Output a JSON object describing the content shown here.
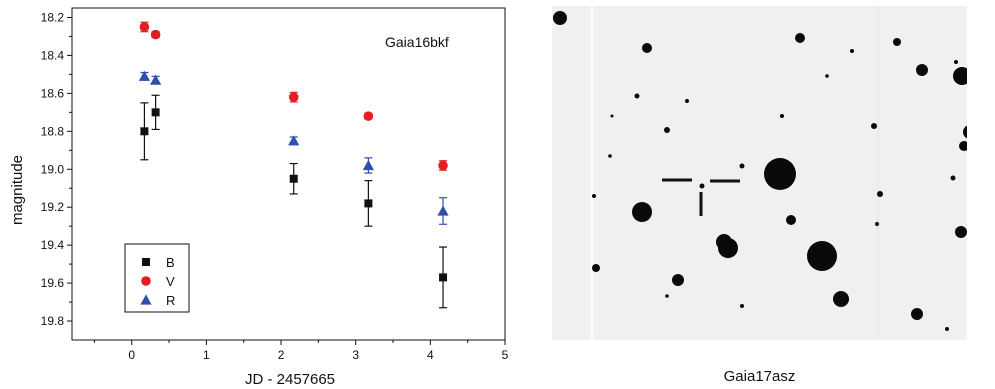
{
  "chart_data": {
    "type": "scatter",
    "xlabel": "JD - 2457665",
    "ylabel": "magnitude",
    "annotation": "Gaia16bkf",
    "xlim": [
      -0.8,
      5
    ],
    "ylim": [
      19.9,
      18.15
    ],
    "y_inverted": true,
    "x_ticks": [
      "0",
      "1",
      "2",
      "3",
      "4",
      "5"
    ],
    "y_ticks": [
      "18.2",
      "18.4",
      "18.6",
      "18.8",
      "19.0",
      "19.2",
      "19.4",
      "19.6",
      "19.8"
    ],
    "grid": false,
    "legend_position": "bottom-left",
    "series": [
      {
        "name": "B",
        "marker": "square",
        "color": "#111111",
        "x": [
          0.17,
          0.32,
          2.17,
          3.17,
          4.17
        ],
        "y": [
          18.8,
          18.7,
          19.05,
          19.18,
          19.57
        ],
        "err": [
          0.15,
          0.09,
          0.08,
          0.12,
          0.16
        ]
      },
      {
        "name": "V",
        "marker": "circle",
        "color": "#e02020",
        "x": [
          0.17,
          0.32,
          2.17,
          3.17,
          4.17
        ],
        "y": [
          18.25,
          18.29,
          18.62,
          18.72,
          18.98
        ],
        "err": [
          0.025,
          0.015,
          0.025,
          0.015,
          0.025
        ]
      },
      {
        "name": "R",
        "marker": "triangle",
        "color": "#2f4fa8",
        "x": [
          0.17,
          0.32,
          2.17,
          3.17,
          4.17
        ],
        "y": [
          18.51,
          18.53,
          18.85,
          18.98,
          19.22
        ],
        "err": [
          0.02,
          0.02,
          0.02,
          0.04,
          0.07
        ]
      }
    ]
  },
  "image_panel": {
    "caption": "Gaia17asz",
    "background": "#f0f0f0",
    "star_color": "#0a0a0a"
  }
}
